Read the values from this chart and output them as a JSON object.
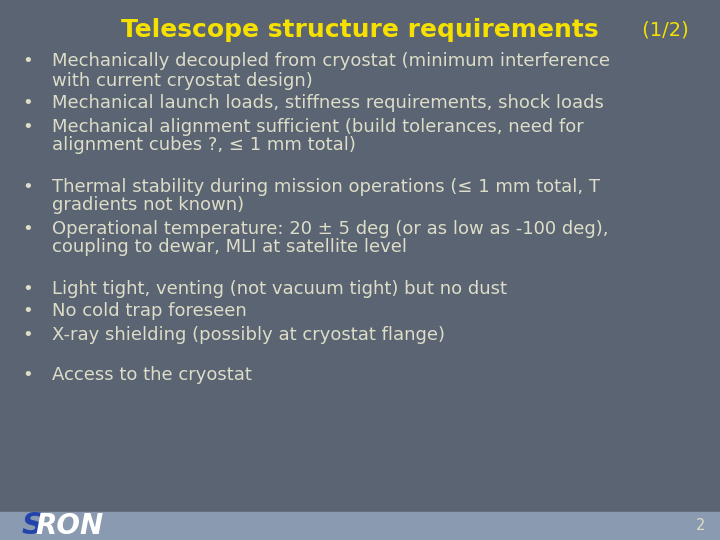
{
  "title_main": "Telescope structure requirements",
  "title_suffix": " (1/2)",
  "background_color": "#5a6472",
  "title_color": "#f5e000",
  "text_color": "#ddddc8",
  "logo_s_color": "#2244aa",
  "logo_ron_color": "#ffffff",
  "footer_bar_color": "#8a9ab0",
  "page_number": "2",
  "bullet_groups": [
    [
      [
        "Mechanically decoupled from cryostat (minimum interference",
        "with current cryostat design)"
      ],
      [
        "Mechanical launch loads, stiffness requirements, shock loads"
      ],
      [
        "Mechanical alignment sufficient (build tolerances, need for",
        "alignment cubes ?, ≤ 1 mm total)"
      ]
    ],
    [
      [
        "Thermal stability during mission operations (≤ 1 mm total, T",
        "gradients not known)"
      ],
      [
        "Operational temperature: 20 ± 5 deg (or as low as -100 deg),",
        "coupling to dewar, MLI at satellite level"
      ]
    ],
    [
      [
        "Light tight, venting (not vacuum tight) but no dust"
      ],
      [
        "No cold trap foreseen"
      ],
      [
        "X-ray shielding (possibly at cryostat flange)"
      ]
    ],
    [
      [
        "Access to the cryostat"
      ]
    ]
  ]
}
